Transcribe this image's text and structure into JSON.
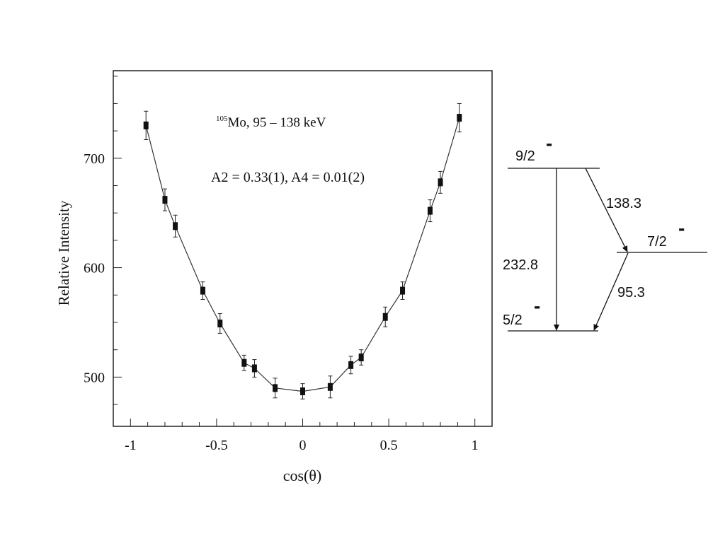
{
  "chart_data": {
    "type": "scatter",
    "annotation_line1": {
      "superscript": "105",
      "text": "Mo, 95 – 138 keV"
    },
    "annotation_line2": "A2 = 0.33(1), A4 = 0.01(2)",
    "xlabel": "cos(θ)",
    "ylabel": "Relative Intensity",
    "xlim": [
      -1.1,
      1.1
    ],
    "ylim": [
      455,
      780
    ],
    "xticks": [
      -1,
      -0.5,
      0,
      0.5,
      1
    ],
    "xtick_labels": [
      "-1",
      "-0.5",
      "0",
      "0.5",
      "1"
    ],
    "yticks": [
      500,
      600,
      700
    ],
    "ytick_labels": [
      "500",
      "600",
      "700"
    ],
    "grid": false,
    "points": [
      {
        "x": -0.91,
        "y": 730,
        "err": 13
      },
      {
        "x": -0.8,
        "y": 662,
        "err": 10
      },
      {
        "x": -0.74,
        "y": 638,
        "err": 10
      },
      {
        "x": -0.58,
        "y": 579,
        "err": 8
      },
      {
        "x": -0.48,
        "y": 549,
        "err": 9
      },
      {
        "x": -0.34,
        "y": 513,
        "err": 7
      },
      {
        "x": -0.28,
        "y": 508,
        "err": 8
      },
      {
        "x": -0.16,
        "y": 490,
        "err": 9
      },
      {
        "x": 0.0,
        "y": 487,
        "err": 7
      },
      {
        "x": 0.16,
        "y": 491,
        "err": 10
      },
      {
        "x": 0.28,
        "y": 511,
        "err": 8
      },
      {
        "x": 0.34,
        "y": 518,
        "err": 7
      },
      {
        "x": 0.48,
        "y": 555,
        "err": 9
      },
      {
        "x": 0.58,
        "y": 579,
        "err": 8
      },
      {
        "x": 0.74,
        "y": 652,
        "err": 10
      },
      {
        "x": 0.8,
        "y": 678,
        "err": 10
      },
      {
        "x": 0.91,
        "y": 737,
        "err": 13
      }
    ]
  },
  "level_scheme": {
    "levels": [
      {
        "spin": "9/2",
        "parity": "-"
      },
      {
        "spin": "7/2",
        "parity": "-"
      },
      {
        "spin": "5/2",
        "parity": "-"
      }
    ],
    "transitions": [
      {
        "from": "9/2",
        "to": "7/2",
        "energy": "138.3"
      },
      {
        "from": "9/2",
        "to": "5/2",
        "energy": "232.8"
      },
      {
        "from": "7/2",
        "to": "5/2",
        "energy": "95.3"
      }
    ]
  }
}
